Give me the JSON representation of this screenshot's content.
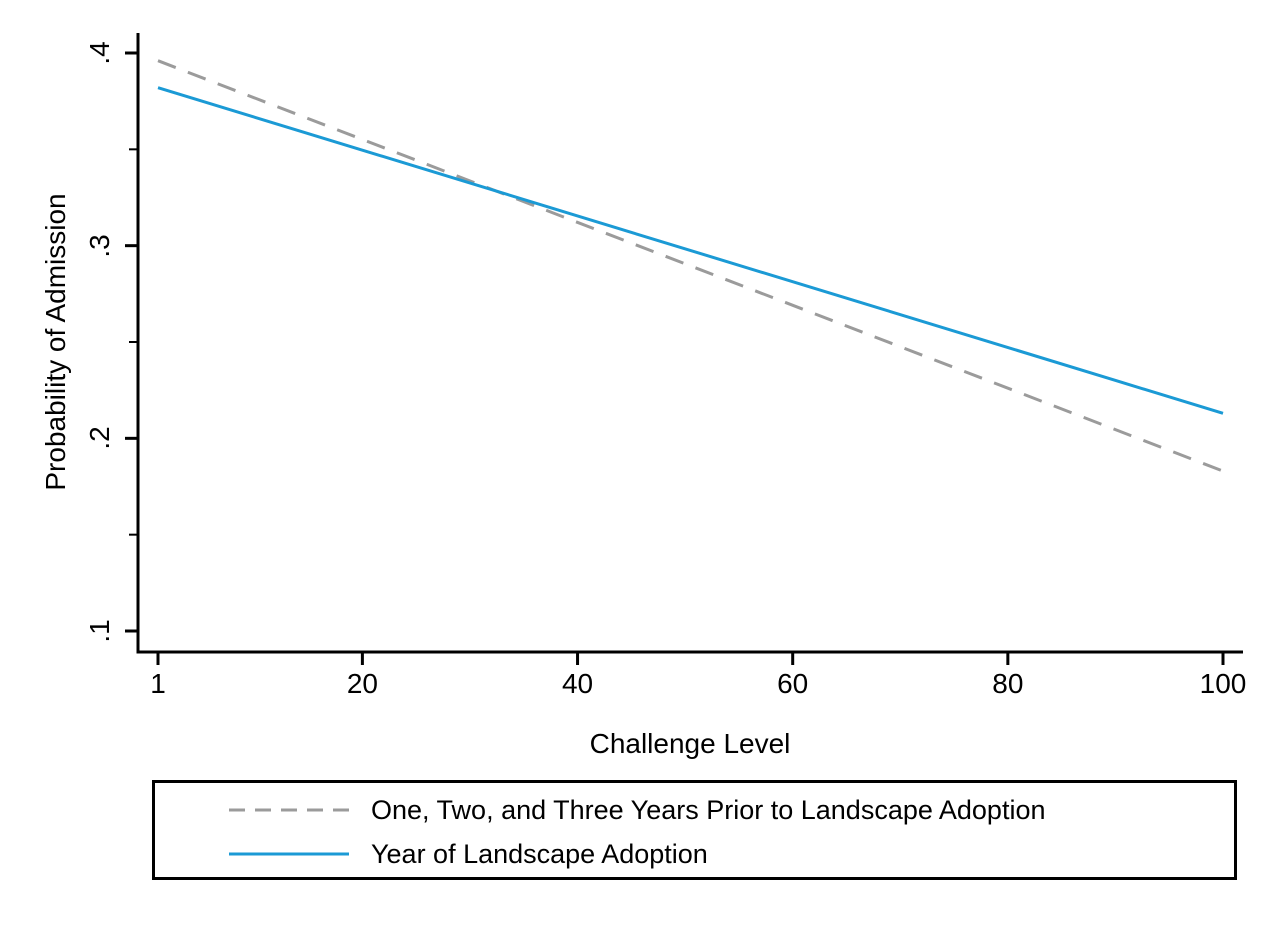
{
  "chart_data": {
    "type": "line",
    "title": "",
    "xlabel": "Challenge Level",
    "ylabel": "Probability of Admission",
    "x_range": [
      1,
      100
    ],
    "y_range": [
      0.1,
      0.4
    ],
    "grid": false,
    "legend_position": "bottom-box",
    "axis_color": "#000000",
    "background_color": "#ffffff",
    "x_ticks": [
      {
        "value": 1,
        "label": "1"
      },
      {
        "value": 20,
        "label": "20"
      },
      {
        "value": 40,
        "label": "40"
      },
      {
        "value": 60,
        "label": "60"
      },
      {
        "value": 80,
        "label": "80"
      },
      {
        "value": 100,
        "label": "100"
      }
    ],
    "y_ticks": [
      {
        "value": 0.4,
        "label": ".4"
      },
      {
        "value": 0.3,
        "label": ".3"
      },
      {
        "value": 0.2,
        "label": ".2"
      },
      {
        "value": 0.1,
        "label": ".1"
      }
    ],
    "y_minor_ticks": [
      0.35,
      0.25,
      0.15
    ],
    "series": [
      {
        "name": "One, Two, and Three Years Prior to Landscape Adoption",
        "style": "dashed",
        "color": "#9b9b9b",
        "x": [
          1,
          100
        ],
        "y": [
          0.396,
          0.183
        ]
      },
      {
        "name": "Year of Landscape Adoption",
        "style": "solid",
        "color": "#1b9ad5",
        "x": [
          1,
          100
        ],
        "y": [
          0.382,
          0.213
        ]
      }
    ]
  }
}
